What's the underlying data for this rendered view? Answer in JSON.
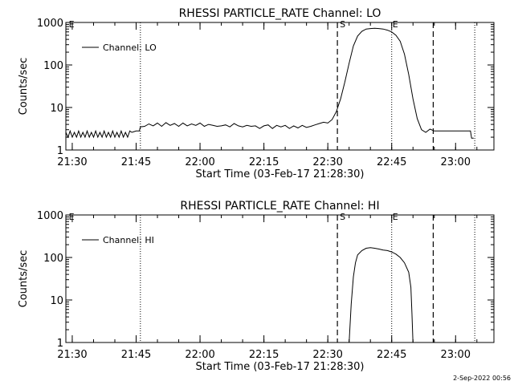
{
  "footer_stamp": "2-Sep-2022 00:56",
  "chart_data": [
    {
      "type": "line",
      "title": "RHESSI PARTICLE_RATE Channel: LO",
      "xlabel": "Start Time (03-Feb-17 21:28:30)",
      "ylabel": "Counts/sec",
      "yscale": "log",
      "xlim": [
        "21:28:30",
        "23:09:00"
      ],
      "ylim": [
        1,
        1000
      ],
      "xticks": [
        "21:30",
        "21:45",
        "22:00",
        "22:15",
        "22:30",
        "22:45",
        "23:00"
      ],
      "yticks": [
        "1",
        "10",
        "100",
        "1000"
      ],
      "legend": {
        "position": "top-left",
        "label": "Channel: LO"
      },
      "markers_dotted": [
        "21:46:00",
        "22:45:00",
        "23:04:30"
      ],
      "markers_dashed": [
        {
          "t": "22:32:15",
          "label": "S"
        },
        {
          "t": "22:54:45",
          "label": ""
        }
      ],
      "marker_text": [
        {
          "t": "21:29:00",
          "label": "E"
        },
        {
          "t": "22:45:00",
          "label": "E"
        }
      ],
      "series": [
        {
          "name": "Channel: LO",
          "points": [
            [
              "21:28:30",
              2.6
            ],
            [
              "21:29:00",
              2.0
            ],
            [
              "21:29:30",
              2.8
            ],
            [
              "21:30:00",
              2.0
            ],
            [
              "21:30:30",
              2.6
            ],
            [
              "21:31:00",
              2.0
            ],
            [
              "21:31:30",
              2.8
            ],
            [
              "21:32:00",
              2.0
            ],
            [
              "21:32:30",
              2.6
            ],
            [
              "21:33:00",
              2.0
            ],
            [
              "21:33:30",
              2.8
            ],
            [
              "21:34:00",
              2.0
            ],
            [
              "21:34:30",
              2.6
            ],
            [
              "21:35:00",
              2.0
            ],
            [
              "21:35:30",
              2.8
            ],
            [
              "21:36:00",
              2.0
            ],
            [
              "21:36:30",
              2.6
            ],
            [
              "21:37:00",
              2.0
            ],
            [
              "21:37:30",
              2.8
            ],
            [
              "21:38:00",
              2.0
            ],
            [
              "21:38:30",
              2.6
            ],
            [
              "21:39:00",
              2.0
            ],
            [
              "21:39:30",
              2.8
            ],
            [
              "21:40:00",
              2.0
            ],
            [
              "21:40:30",
              2.6
            ],
            [
              "21:41:00",
              2.0
            ],
            [
              "21:41:30",
              2.8
            ],
            [
              "21:42:00",
              2.0
            ],
            [
              "21:42:30",
              2.6
            ],
            [
              "21:43:00",
              2.0
            ],
            [
              "21:43:30",
              2.8
            ],
            [
              "21:44:00",
              2.6
            ],
            [
              "21:44:30",
              2.7
            ],
            [
              "21:45:00",
              2.8
            ],
            [
              "21:45:45",
              2.8
            ],
            [
              "21:46:00",
              3.5
            ],
            [
              "21:47:00",
              3.6
            ],
            [
              "21:48:00",
              4.1
            ],
            [
              "21:49:00",
              3.7
            ],
            [
              "21:50:00",
              4.3
            ],
            [
              "21:51:00",
              3.6
            ],
            [
              "21:52:00",
              4.4
            ],
            [
              "21:53:00",
              3.8
            ],
            [
              "21:54:00",
              4.2
            ],
            [
              "21:55:00",
              3.6
            ],
            [
              "21:56:00",
              4.3
            ],
            [
              "21:57:00",
              3.7
            ],
            [
              "21:58:00",
              4.1
            ],
            [
              "21:59:00",
              3.8
            ],
            [
              "22:00:00",
              4.3
            ],
            [
              "22:01:00",
              3.6
            ],
            [
              "22:02:00",
              4.0
            ],
            [
              "22:03:00",
              3.8
            ],
            [
              "22:04:00",
              3.6
            ],
            [
              "22:05:00",
              3.7
            ],
            [
              "22:06:00",
              3.9
            ],
            [
              "22:07:00",
              3.5
            ],
            [
              "22:08:00",
              4.2
            ],
            [
              "22:09:00",
              3.7
            ],
            [
              "22:10:00",
              3.5
            ],
            [
              "22:11:00",
              3.8
            ],
            [
              "22:12:00",
              3.6
            ],
            [
              "22:13:00",
              3.7
            ],
            [
              "22:14:00",
              3.2
            ],
            [
              "22:15:00",
              3.7
            ],
            [
              "22:16:00",
              3.9
            ],
            [
              "22:17:00",
              3.2
            ],
            [
              "22:18:00",
              3.8
            ],
            [
              "22:19:00",
              3.5
            ],
            [
              "22:20:00",
              3.8
            ],
            [
              "22:21:00",
              3.2
            ],
            [
              "22:22:00",
              3.7
            ],
            [
              "22:23:00",
              3.3
            ],
            [
              "22:24:00",
              3.8
            ],
            [
              "22:25:00",
              3.4
            ],
            [
              "22:26:00",
              3.6
            ],
            [
              "22:27:00",
              3.9
            ],
            [
              "22:28:00",
              4.2
            ],
            [
              "22:29:00",
              4.5
            ],
            [
              "22:30:00",
              4.3
            ],
            [
              "22:31:00",
              5.2
            ],
            [
              "22:32:00",
              8.0
            ],
            [
              "22:33:00",
              16
            ],
            [
              "22:34:00",
              40
            ],
            [
              "22:35:00",
              110
            ],
            [
              "22:36:00",
              280
            ],
            [
              "22:37:00",
              480
            ],
            [
              "22:38:00",
              620
            ],
            [
              "22:39:00",
              700
            ],
            [
              "22:40:00",
              720
            ],
            [
              "22:41:00",
              730
            ],
            [
              "22:42:00",
              720
            ],
            [
              "22:43:00",
              700
            ],
            [
              "22:44:00",
              660
            ],
            [
              "22:45:00",
              600
            ],
            [
              "22:46:00",
              500
            ],
            [
              "22:47:00",
              360
            ],
            [
              "22:48:00",
              180
            ],
            [
              "22:49:00",
              60
            ],
            [
              "22:50:00",
              16
            ],
            [
              "22:51:00",
              5.5
            ],
            [
              "22:52:00",
              3.0
            ],
            [
              "22:53:00",
              2.6
            ],
            [
              "22:54:00",
              3.1
            ],
            [
              "22:55:00",
              2.8
            ],
            [
              "22:56:00",
              2.8
            ],
            [
              "22:58:00",
              2.8
            ],
            [
              "23:00:00",
              2.8
            ],
            [
              "23:02:00",
              2.8
            ],
            [
              "23:03:30",
              2.8
            ],
            [
              "23:03:45",
              1.9
            ],
            [
              "23:04:15",
              1.9
            ]
          ]
        }
      ]
    },
    {
      "type": "line",
      "title": "RHESSI PARTICLE_RATE Channel: HI",
      "xlabel": "Start Time (03-Feb-17 21:28:30)",
      "ylabel": "Counts/sec",
      "yscale": "log",
      "xlim": [
        "21:28:30",
        "23:09:00"
      ],
      "ylim": [
        1,
        1000
      ],
      "xticks": [
        "21:30",
        "21:45",
        "22:00",
        "22:15",
        "22:30",
        "22:45",
        "23:00"
      ],
      "yticks": [
        "1",
        "10",
        "100",
        "1000"
      ],
      "legend": {
        "position": "top-left",
        "label": "Channel: HI"
      },
      "markers_dotted": [
        "21:46:00",
        "22:45:00",
        "23:04:30"
      ],
      "markers_dashed": [
        {
          "t": "22:32:15",
          "label": "S"
        },
        {
          "t": "22:54:45",
          "label": ""
        }
      ],
      "marker_text": [
        {
          "t": "21:29:00",
          "label": "E"
        },
        {
          "t": "22:45:00",
          "label": "E"
        }
      ],
      "series": [
        {
          "name": "Channel: HI",
          "points": [
            [
              "22:35:00",
              1.0
            ],
            [
              "22:35:30",
              8
            ],
            [
              "22:36:00",
              35
            ],
            [
              "22:36:30",
              75
            ],
            [
              "22:37:00",
              115
            ],
            [
              "22:38:00",
              145
            ],
            [
              "22:39:00",
              165
            ],
            [
              "22:40:00",
              170
            ],
            [
              "22:41:00",
              165
            ],
            [
              "22:42:00",
              158
            ],
            [
              "22:43:00",
              150
            ],
            [
              "22:44:00",
              145
            ],
            [
              "22:45:00",
              135
            ],
            [
              "22:46:00",
              120
            ],
            [
              "22:47:00",
              100
            ],
            [
              "22:48:00",
              75
            ],
            [
              "22:49:00",
              45
            ],
            [
              "22:49:30",
              20
            ],
            [
              "22:49:45",
              5
            ],
            [
              "22:50:00",
              1.0
            ]
          ]
        }
      ]
    }
  ]
}
